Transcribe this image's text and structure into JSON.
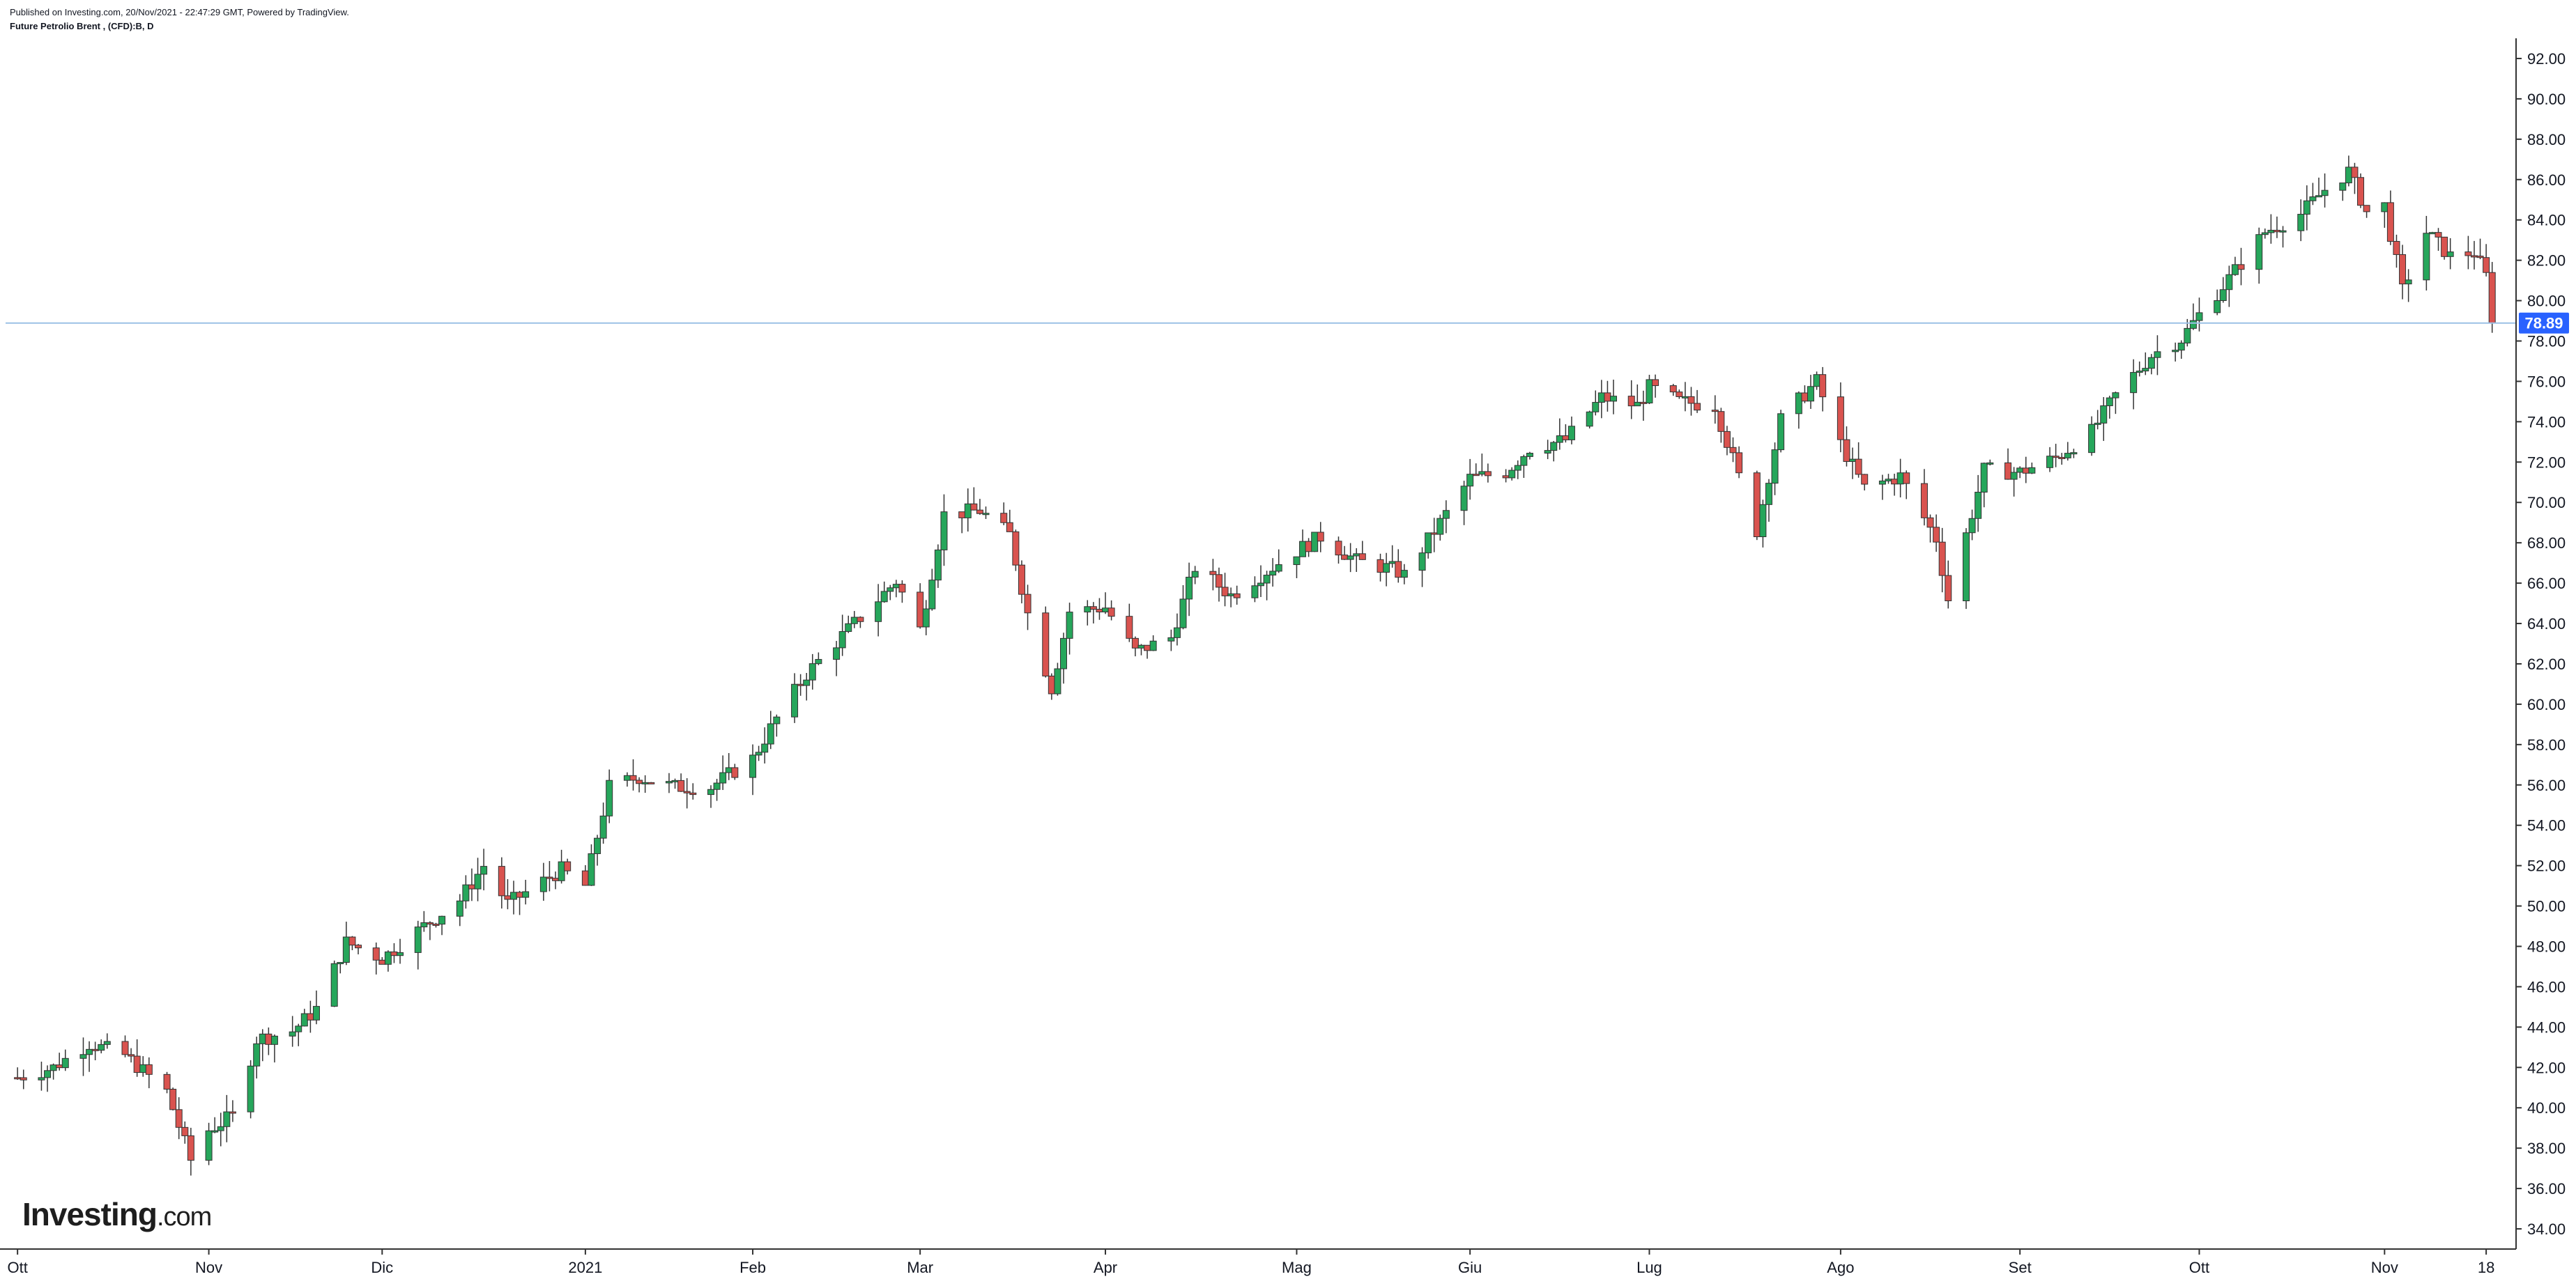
{
  "header": {
    "published": "Published on Investing.com, 20/Nov/2021 - 22:47:29 GMT, Powered by TradingView.",
    "symbol": "Future Petrolio Brent , (CFD):B, D"
  },
  "logo": {
    "brand": "Investing",
    "suffix": ".com"
  },
  "colors": {
    "up": "#26a65b",
    "down": "#d9534f",
    "wick": "#333333",
    "price_line": "#9cc1e6",
    "price_label_bg": "#2962ff",
    "axis": "#333333"
  },
  "chart_data": {
    "type": "candlestick",
    "title": "Future Petrolio Brent , (CFD):B, D",
    "ylim": [
      33,
      93
    ],
    "y_ticks": [
      "34.00",
      "36.00",
      "38.00",
      "40.00",
      "42.00",
      "44.00",
      "46.00",
      "48.00",
      "50.00",
      "52.00",
      "54.00",
      "56.00",
      "58.00",
      "60.00",
      "62.00",
      "64.00",
      "66.00",
      "68.00",
      "70.00",
      "72.00",
      "74.00",
      "76.00",
      "78.00",
      "80.00",
      "82.00",
      "84.00",
      "86.00",
      "88.00",
      "90.00",
      "92.00"
    ],
    "x_ticks": [
      {
        "label": "Ott",
        "date": "2020-10-01"
      },
      {
        "label": "Nov",
        "date": "2020-11-02"
      },
      {
        "label": "Dic",
        "date": "2020-12-01"
      },
      {
        "label": "2021",
        "date": "2021-01-04"
      },
      {
        "label": "Feb",
        "date": "2021-02-01"
      },
      {
        "label": "Mar",
        "date": "2021-03-01"
      },
      {
        "label": "Apr",
        "date": "2021-04-01"
      },
      {
        "label": "Mag",
        "date": "2021-05-03"
      },
      {
        "label": "Giu",
        "date": "2021-06-01"
      },
      {
        "label": "Lug",
        "date": "2021-07-01"
      },
      {
        "label": "Ago",
        "date": "2021-08-02"
      },
      {
        "label": "Set",
        "date": "2021-09-01"
      },
      {
        "label": "Ott",
        "date": "2021-10-01"
      },
      {
        "label": "Nov",
        "date": "2021-11-01"
      },
      {
        "label": "18",
        "date": "2021-11-18"
      }
    ],
    "last_price": "78.89",
    "last_price_value": 78.89,
    "series": [
      {
        "date": "2020-10-01",
        "close": 41.5
      },
      {
        "date": "2020-10-07",
        "close": 42.0
      },
      {
        "date": "2020-10-13",
        "close": 43.2
      },
      {
        "date": "2020-10-19",
        "close": 42.6
      },
      {
        "date": "2020-10-26",
        "close": 40.8
      },
      {
        "date": "2020-10-30",
        "close": 37.4
      },
      {
        "date": "2020-11-02",
        "close": 38.9
      },
      {
        "date": "2020-11-06",
        "close": 39.6
      },
      {
        "date": "2020-11-10",
        "close": 43.4
      },
      {
        "date": "2020-11-16",
        "close": 43.8
      },
      {
        "date": "2020-11-20",
        "close": 44.9
      },
      {
        "date": "2020-11-25",
        "close": 48.2
      },
      {
        "date": "2020-12-01",
        "close": 47.4
      },
      {
        "date": "2020-12-08",
        "close": 49.0
      },
      {
        "date": "2020-12-14",
        "close": 50.3
      },
      {
        "date": "2020-12-18",
        "close": 52.0
      },
      {
        "date": "2020-12-22",
        "close": 50.1
      },
      {
        "date": "2020-12-31",
        "close": 51.8
      },
      {
        "date": "2021-01-04",
        "close": 51.0
      },
      {
        "date": "2021-01-08",
        "close": 55.9
      },
      {
        "date": "2021-01-13",
        "close": 56.4
      },
      {
        "date": "2021-01-19",
        "close": 55.9
      },
      {
        "date": "2021-01-25",
        "close": 55.9
      },
      {
        "date": "2021-02-01",
        "close": 57.3
      },
      {
        "date": "2021-02-05",
        "close": 59.3
      },
      {
        "date": "2021-02-10",
        "close": 61.5
      },
      {
        "date": "2021-02-16",
        "close": 63.4
      },
      {
        "date": "2021-02-22",
        "close": 65.2
      },
      {
        "date": "2021-02-25",
        "close": 66.1
      },
      {
        "date": "2021-03-01",
        "close": 63.7
      },
      {
        "date": "2021-03-05",
        "close": 69.4
      },
      {
        "date": "2021-03-11",
        "close": 69.6
      },
      {
        "date": "2021-03-16",
        "close": 68.4
      },
      {
        "date": "2021-03-19",
        "close": 64.5
      },
      {
        "date": "2021-03-23",
        "close": 60.8
      },
      {
        "date": "2021-03-26",
        "close": 64.6
      },
      {
        "date": "2021-04-01",
        "close": 64.8
      },
      {
        "date": "2021-04-06",
        "close": 62.6
      },
      {
        "date": "2021-04-12",
        "close": 63.3
      },
      {
        "date": "2021-04-16",
        "close": 66.8
      },
      {
        "date": "2021-04-22",
        "close": 65.4
      },
      {
        "date": "2021-04-28",
        "close": 66.6
      },
      {
        "date": "2021-05-03",
        "close": 67.6
      },
      {
        "date": "2021-05-07",
        "close": 68.3
      },
      {
        "date": "2021-05-13",
        "close": 67.1
      },
      {
        "date": "2021-05-19",
        "close": 66.7
      },
      {
        "date": "2021-05-21",
        "close": 66.4
      },
      {
        "date": "2021-05-27",
        "close": 69.0
      },
      {
        "date": "2021-06-01",
        "close": 71.2
      },
      {
        "date": "2021-06-07",
        "close": 71.5
      },
      {
        "date": "2021-06-11",
        "close": 72.7
      },
      {
        "date": "2021-06-17",
        "close": 73.1
      },
      {
        "date": "2021-06-23",
        "close": 75.2
      },
      {
        "date": "2021-06-29",
        "close": 74.8
      },
      {
        "date": "2021-07-01",
        "close": 75.7
      },
      {
        "date": "2021-07-06",
        "close": 75.0
      },
      {
        "date": "2021-07-12",
        "close": 74.8
      },
      {
        "date": "2021-07-19",
        "close": 68.6
      },
      {
        "date": "2021-07-23",
        "close": 74.1
      },
      {
        "date": "2021-07-29",
        "close": 76.0
      },
      {
        "date": "2021-08-02",
        "close": 72.9
      },
      {
        "date": "2021-08-06",
        "close": 70.7
      },
      {
        "date": "2021-08-12",
        "close": 71.3
      },
      {
        "date": "2021-08-18",
        "close": 68.2
      },
      {
        "date": "2021-08-20",
        "close": 65.2
      },
      {
        "date": "2021-08-26",
        "close": 71.6
      },
      {
        "date": "2021-09-01",
        "close": 71.5
      },
      {
        "date": "2021-09-07",
        "close": 72.2
      },
      {
        "date": "2021-09-13",
        "close": 73.5
      },
      {
        "date": "2021-09-17",
        "close": 75.3
      },
      {
        "date": "2021-09-23",
        "close": 77.3
      },
      {
        "date": "2021-09-28",
        "close": 78.1
      },
      {
        "date": "2021-10-01",
        "close": 79.3
      },
      {
        "date": "2021-10-06",
        "close": 81.1
      },
      {
        "date": "2021-10-12",
        "close": 83.4
      },
      {
        "date": "2021-10-18",
        "close": 84.3
      },
      {
        "date": "2021-10-22",
        "close": 85.5
      },
      {
        "date": "2021-10-26",
        "close": 86.4
      },
      {
        "date": "2021-10-29",
        "close": 84.4
      },
      {
        "date": "2021-11-01",
        "close": 84.7
      },
      {
        "date": "2021-11-04",
        "close": 80.5
      },
      {
        "date": "2021-11-08",
        "close": 83.4
      },
      {
        "date": "2021-11-12",
        "close": 82.2
      },
      {
        "date": "2021-11-16",
        "close": 82.4
      },
      {
        "date": "2021-11-18",
        "close": 81.2
      },
      {
        "date": "2021-11-19",
        "close": 78.89
      }
    ]
  }
}
